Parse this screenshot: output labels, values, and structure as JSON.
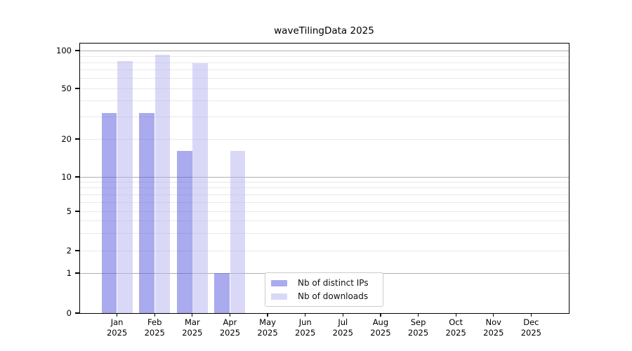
{
  "chart_data": {
    "type": "bar",
    "title": "waveTilingData 2025",
    "categories": [
      "Jan",
      "Feb",
      "Mar",
      "Apr",
      "May",
      "Jun",
      "Jul",
      "Aug",
      "Sep",
      "Oct",
      "Nov",
      "Dec"
    ],
    "category_year": "2025",
    "series": [
      {
        "name": "Nb of distinct IPs",
        "color": "#aaaaee",
        "values": [
          32,
          32,
          16,
          1,
          null,
          null,
          null,
          null,
          null,
          null,
          null,
          null
        ]
      },
      {
        "name": "Nb of downloads",
        "color": "#d9d9f7",
        "values": [
          82,
          93,
          79,
          16,
          null,
          null,
          null,
          null,
          null,
          null,
          null,
          null
        ]
      }
    ],
    "yticks": [
      0,
      1,
      2,
      5,
      10,
      20,
      50,
      100
    ],
    "ylim": [
      0,
      115
    ],
    "xlabel": "",
    "ylabel": "",
    "yscale": "log",
    "grid": {
      "horizontal": true,
      "vertical": false,
      "major_at": [
        1,
        10,
        100
      ],
      "minor_at": [
        2,
        3,
        4,
        5,
        6,
        7,
        8,
        9,
        20,
        30,
        40,
        50,
        60,
        70,
        80,
        90
      ]
    },
    "legend": {
      "position": "bottom-center"
    }
  },
  "colors": {
    "background": "#ffffff",
    "spine": "#000000",
    "grid_major": "#b0b0b0",
    "grid_minor": "#e9e9e9",
    "legend_border": "#cccccc",
    "bar_distinct_ips": "#aaaaee",
    "bar_downloads": "#d9d9f7"
  }
}
